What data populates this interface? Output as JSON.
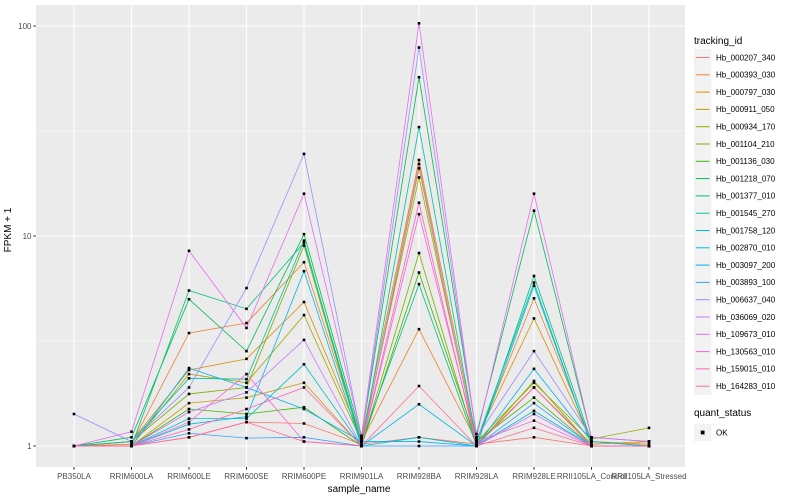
{
  "style": {
    "panel_background": "#EBEBEB",
    "gridline_color": "#FFFFFF",
    "tick_color": "#333333",
    "tick_label_color": "#4D4D4D",
    "point_color": "#000000",
    "legend_key_background": "#F2F2F2"
  },
  "chart_data": {
    "type": "line",
    "title": "",
    "xlabel": "sample_name",
    "ylabel": "FPKM + 1",
    "y_scale": "log10",
    "ylim": [
      1,
      100
    ],
    "y_ticks": [
      "1",
      "10",
      "100"
    ],
    "y_minor_gridlines": [
      3.1623,
      31.623
    ],
    "grid": "on",
    "legend_position": "right",
    "point_shape": "square",
    "categories": [
      "PB350LA",
      "RRIM600LA",
      "RRIM600LE",
      "RRIM600SE",
      "RRIM600PE",
      "RRIM901LA",
      "RRIM928BA",
      "RRIM928LA",
      "RRIM928LE",
      "RRII105LA_Control",
      "RRII105LA_Stressed"
    ],
    "series": [
      {
        "name": "Hb_000207_340",
        "color": "#F8766D",
        "values": [
          1.0,
          1.0,
          1.1,
          1.3,
          1.28,
          1.02,
          1.1,
          1.02,
          1.1,
          1.0,
          1.0
        ]
      },
      {
        "name": "Hb_000393_030",
        "color": "#EA8331",
        "values": [
          1.0,
          1.02,
          3.45,
          3.85,
          7.5,
          1.05,
          3.6,
          1.05,
          5.05,
          1.05,
          1.0
        ]
      },
      {
        "name": "Hb_000797_030",
        "color": "#D89000",
        "values": [
          1.0,
          1.05,
          2.3,
          2.6,
          4.85,
          1.08,
          23.0,
          1.08,
          4.05,
          1.05,
          1.02
        ]
      },
      {
        "name": "Hb_000911_050",
        "color": "#C09B00",
        "values": [
          1.0,
          1.0,
          1.6,
          1.7,
          2.0,
          1.0,
          21.0,
          1.02,
          1.9,
          1.02,
          1.05
        ]
      },
      {
        "name": "Hb_000934_170",
        "color": "#A3A500",
        "values": [
          1.0,
          1.0,
          2.2,
          2.0,
          4.2,
          1.05,
          19.0,
          1.05,
          2.0,
          1.08,
          1.22
        ]
      },
      {
        "name": "Hb_001104_210",
        "color": "#7CAE00",
        "values": [
          1.0,
          1.05,
          1.77,
          1.9,
          9.0,
          1.0,
          8.3,
          1.0,
          2.04,
          1.0,
          1.0
        ]
      },
      {
        "name": "Hb_001136_030",
        "color": "#39B600",
        "values": [
          1.0,
          1.0,
          1.5,
          1.42,
          1.53,
          1.0,
          6.7,
          1.05,
          1.7,
          1.0,
          1.0
        ]
      },
      {
        "name": "Hb_001218_070",
        "color": "#00BB4E",
        "values": [
          1.0,
          1.1,
          5.0,
          2.83,
          10.2,
          1.1,
          57.0,
          1.14,
          13.2,
          1.1,
          1.05
        ]
      },
      {
        "name": "Hb_001377_010",
        "color": "#00BF7D",
        "values": [
          1.0,
          1.0,
          5.5,
          4.5,
          9.3,
          1.05,
          5.9,
          1.0,
          6.45,
          1.05,
          1.0
        ]
      },
      {
        "name": "Hb_001545_270",
        "color": "#00C1A3",
        "values": [
          1.0,
          1.05,
          2.1,
          2.08,
          9.5,
          1.0,
          33.0,
          1.05,
          6.0,
          1.0,
          1.0
        ]
      },
      {
        "name": "Hb_001758_120",
        "color": "#00BFC4",
        "values": [
          1.0,
          1.0,
          1.35,
          1.35,
          2.45,
          1.0,
          1.1,
          1.0,
          1.47,
          1.0,
          1.0
        ]
      },
      {
        "name": "Hb_002870_010",
        "color": "#00BAE0",
        "values": [
          1.0,
          1.0,
          1.27,
          1.38,
          6.8,
          1.0,
          1.58,
          1.0,
          5.8,
          1.0,
          1.0
        ]
      },
      {
        "name": "Hb_003097_200",
        "color": "#00B0F6",
        "values": [
          1.0,
          1.0,
          2.35,
          1.9,
          1.5,
          1.05,
          1.05,
          1.0,
          2.33,
          1.05,
          1.0
        ]
      },
      {
        "name": "Hb_003893_100",
        "color": "#35A2FF",
        "values": [
          1.0,
          1.0,
          1.15,
          1.09,
          1.1,
          1.0,
          1.0,
          1.0,
          1.6,
          1.0,
          1.0
        ]
      },
      {
        "name": "Hb_006637_040",
        "color": "#9590FF",
        "values": [
          1.42,
          1.05,
          1.9,
          5.65,
          24.6,
          1.1,
          79.0,
          1.1,
          2.83,
          1.1,
          1.05
        ]
      },
      {
        "name": "Hb_036069_020",
        "color": "#C77CFF",
        "values": [
          1.0,
          1.0,
          1.45,
          1.8,
          3.2,
          1.0,
          22.0,
          1.0,
          1.42,
          1.0,
          1.0
        ]
      },
      {
        "name": "Hb_109673_010",
        "color": "#E76BF3",
        "values": [
          1.0,
          1.17,
          8.5,
          3.65,
          15.9,
          1.12,
          103.0,
          1.1,
          15.9,
          1.1,
          1.05
        ]
      },
      {
        "name": "Hb_130563_010",
        "color": "#FA62DB",
        "values": [
          1.0,
          1.0,
          1.3,
          2.2,
          1.05,
          1.0,
          12.7,
          1.05,
          1.32,
          1.0,
          1.0
        ]
      },
      {
        "name": "Hb_159015_010",
        "color": "#FF62BC",
        "values": [
          1.0,
          1.0,
          1.2,
          1.5,
          1.9,
          1.0,
          14.4,
          1.0,
          1.9,
          1.0,
          1.0
        ]
      },
      {
        "name": "Hb_164283_010",
        "color": "#FF6A98",
        "values": [
          1.0,
          1.0,
          1.1,
          1.3,
          1.05,
          1.0,
          1.93,
          1.0,
          1.22,
          1.0,
          1.0
        ]
      }
    ]
  },
  "legend": {
    "title": "tracking_id"
  },
  "legend2": {
    "title": "quant_status",
    "items": [
      {
        "label": "OK"
      }
    ]
  }
}
